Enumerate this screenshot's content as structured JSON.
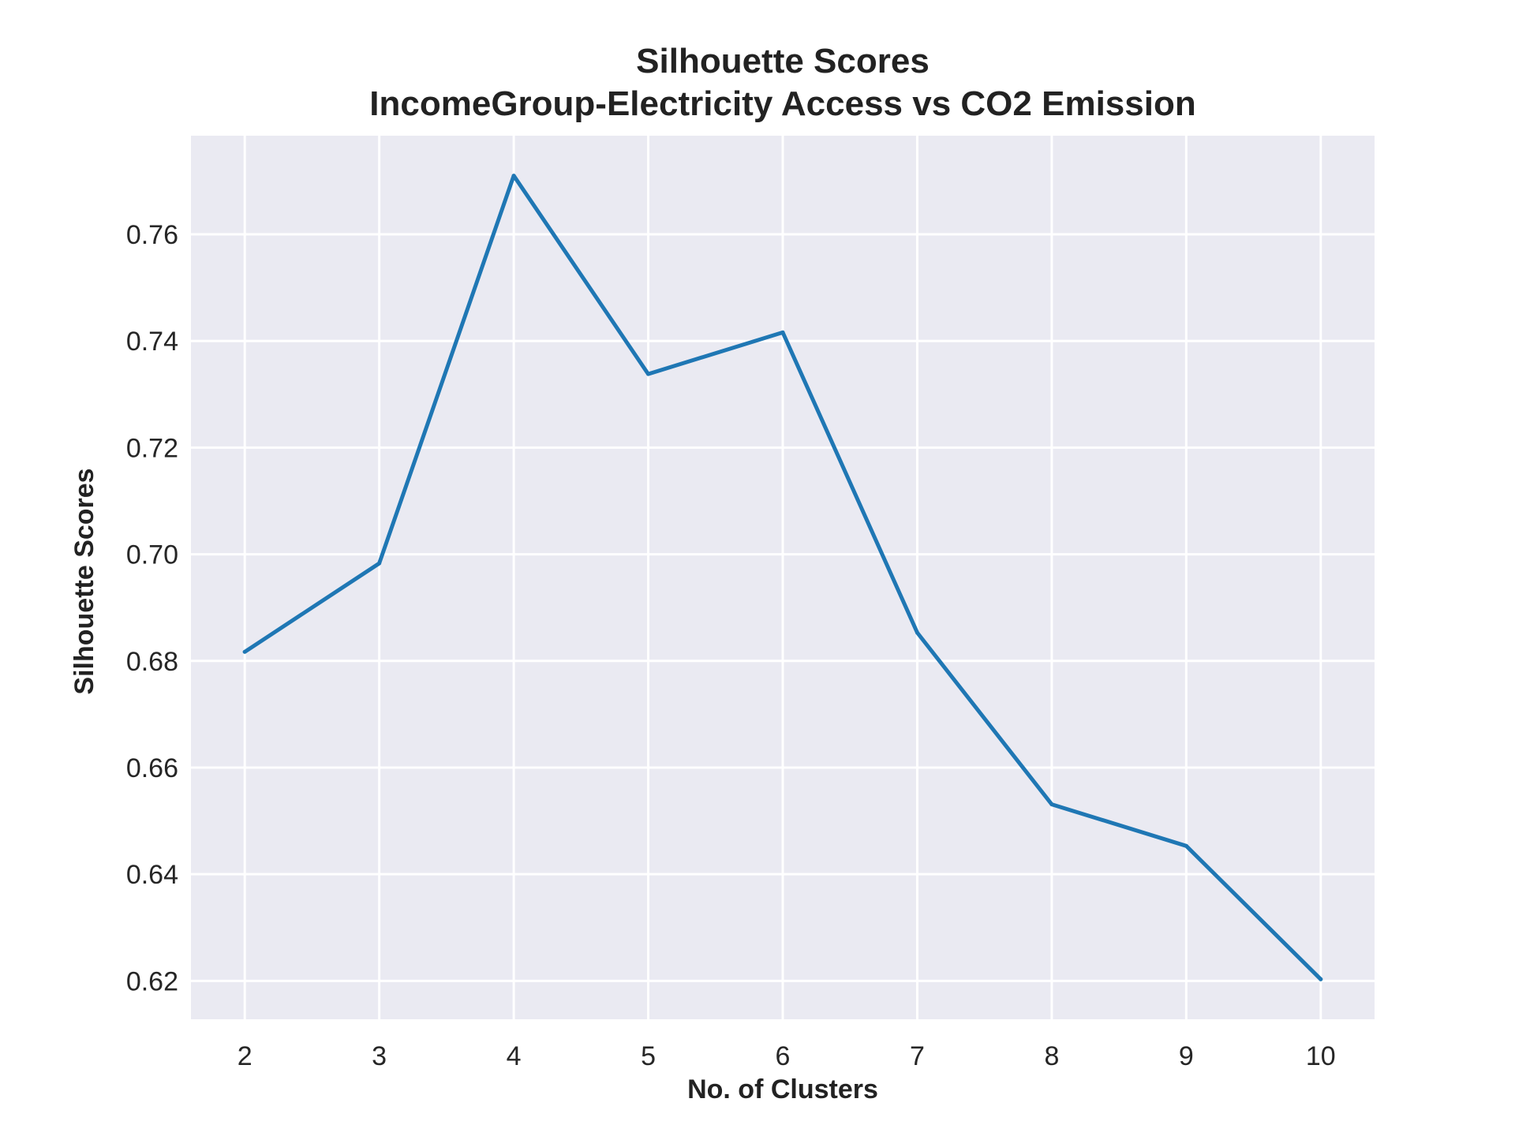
{
  "chart_data": {
    "type": "line",
    "title_line1": "Silhouette Scores",
    "title_line2": "IncomeGroup-Electricity Access vs CO2 Emission",
    "xlabel": "No. of Clusters",
    "ylabel": "Silhouette Scores",
    "x": [
      2,
      3,
      4,
      5,
      6,
      7,
      8,
      9,
      10
    ],
    "series": [
      {
        "values": [
          0.6817,
          0.6983,
          0.771,
          0.7338,
          0.7416,
          0.6853,
          0.6531,
          0.6453,
          0.6203
        ]
      }
    ],
    "xticks": [
      "2",
      "3",
      "4",
      "5",
      "6",
      "7",
      "8",
      "9",
      "10"
    ],
    "yticks": [
      "0.62",
      "0.64",
      "0.66",
      "0.68",
      "0.70",
      "0.72",
      "0.74",
      "0.76"
    ],
    "xlim": [
      1.6,
      10.4
    ],
    "ylim": [
      0.6128,
      0.7785
    ],
    "grid": true,
    "colors": {
      "line": "#1f77b4",
      "plot_bg": "#eaeaf2"
    }
  }
}
